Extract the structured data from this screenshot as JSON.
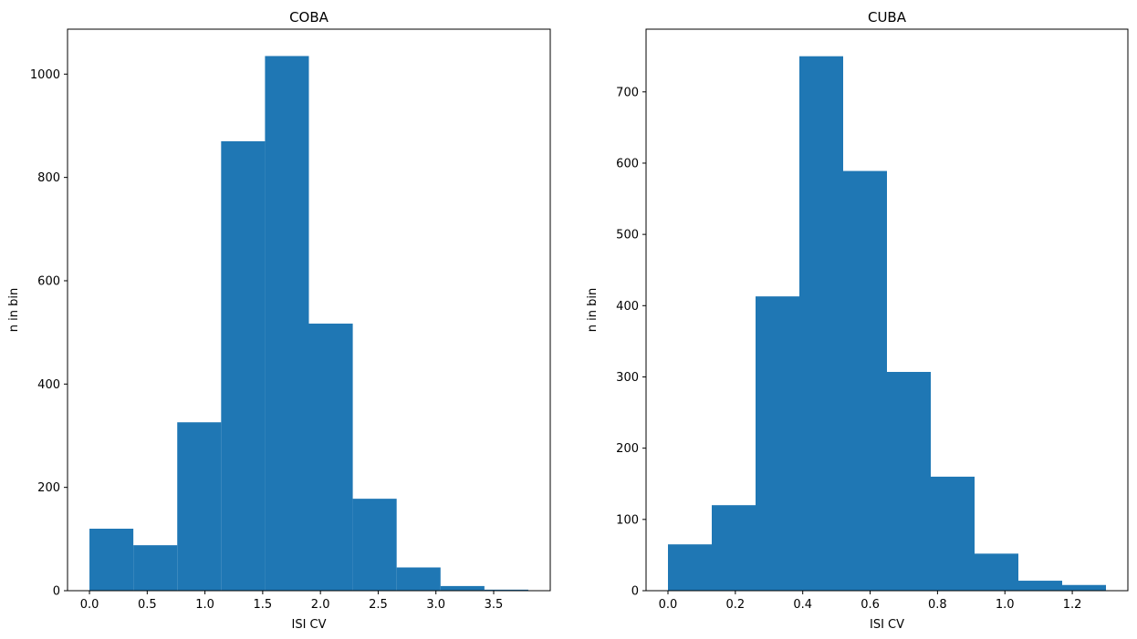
{
  "chart_data": [
    {
      "type": "bar",
      "title": "COBA",
      "xlabel": "ISI CV",
      "ylabel": "n in bin",
      "bar_color": "#1f77b4",
      "bin_edges": [
        0.0,
        0.38,
        0.76,
        1.14,
        1.52,
        1.9,
        2.28,
        2.66,
        3.04,
        3.42,
        3.8
      ],
      "values": [
        120,
        88,
        326,
        870,
        1035,
        517,
        178,
        45,
        9,
        2
      ],
      "xlim": [
        -0.19,
        3.99
      ],
      "ylim": [
        0,
        1087
      ],
      "xticks": [
        0.0,
        0.5,
        1.0,
        1.5,
        2.0,
        2.5,
        3.0,
        3.5
      ],
      "xtick_labels": [
        "0.0",
        "0.5",
        "1.0",
        "1.5",
        "2.0",
        "2.5",
        "3.0",
        "3.5"
      ],
      "yticks": [
        0,
        200,
        400,
        600,
        800,
        1000
      ],
      "ytick_labels": [
        "0",
        "200",
        "400",
        "600",
        "800",
        "1000"
      ],
      "grid": false,
      "legend": false
    },
    {
      "type": "bar",
      "title": "CUBA",
      "xlabel": "ISI CV",
      "ylabel": "n in bin",
      "bar_color": "#1f77b4",
      "bin_edges": [
        0.0,
        0.13,
        0.26,
        0.39,
        0.52,
        0.65,
        0.78,
        0.91,
        1.04,
        1.17,
        1.3
      ],
      "values": [
        65,
        120,
        413,
        750,
        589,
        307,
        160,
        52,
        14,
        8
      ],
      "xlim": [
        -0.065,
        1.365
      ],
      "ylim": [
        0,
        788
      ],
      "xticks": [
        0.0,
        0.2,
        0.4,
        0.6,
        0.8,
        1.0,
        1.2
      ],
      "xtick_labels": [
        "0.0",
        "0.2",
        "0.4",
        "0.6",
        "0.8",
        "1.0",
        "1.2"
      ],
      "yticks": [
        0,
        100,
        200,
        300,
        400,
        500,
        600,
        700
      ],
      "ytick_labels": [
        "0",
        "100",
        "200",
        "300",
        "400",
        "500",
        "600",
        "700"
      ],
      "grid": false,
      "legend": false
    }
  ]
}
